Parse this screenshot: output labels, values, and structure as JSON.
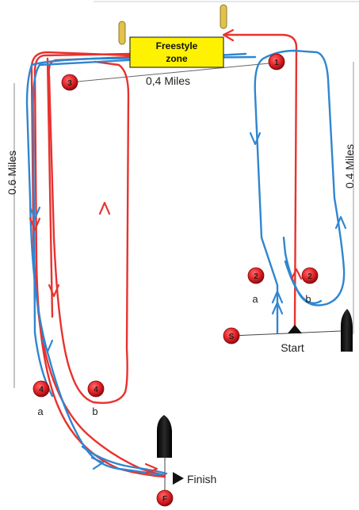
{
  "zone": {
    "line1": "Freestyle",
    "line2": "zone"
  },
  "distances": {
    "top": "0,4 Miles",
    "left": "0.6 Miles",
    "right": "0.4 Miles"
  },
  "buoys": {
    "b1": "1",
    "b2a": "2",
    "b2b": "2",
    "b3": "3",
    "b4a": "4",
    "b4b": "4",
    "start": "S",
    "finish": "F"
  },
  "sub_labels": {
    "a1": "a",
    "b1": "b",
    "a2": "a",
    "b2": "b"
  },
  "labels": {
    "start": "Start",
    "finish": "Finish"
  },
  "colors": {
    "red_route": "#e8322e",
    "blue_route": "#2f86d0",
    "buoy": "#e31e24",
    "zone_fill": "#fff200"
  }
}
